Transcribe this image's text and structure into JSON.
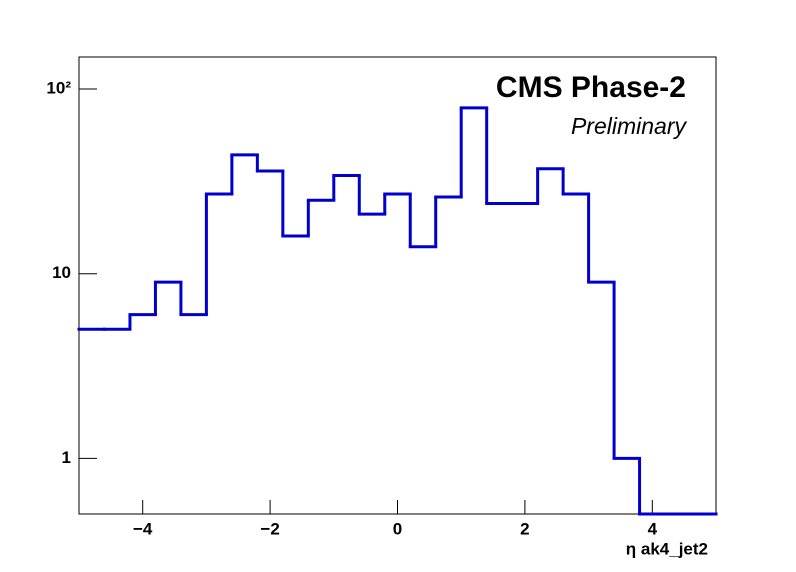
{
  "chart_data": {
    "type": "histogram",
    "title": "CMS Phase-2",
    "subtitle": "Preliminary",
    "x_label": "η ak4_jet2",
    "bins": [
      -5.0,
      -4.6,
      -4.2,
      -3.8,
      -3.4,
      -3.0,
      -2.6,
      -2.2,
      -1.8,
      -1.4,
      -1.0,
      -0.6,
      -0.2,
      0.2,
      0.6,
      1.0,
      1.4,
      1.8,
      2.2,
      2.6,
      3.0,
      3.4,
      3.8,
      4.2,
      4.6,
      5.0
    ],
    "counts": [
      5,
      5,
      6,
      9,
      6,
      27,
      44,
      36,
      16,
      25,
      34,
      21,
      27,
      14,
      26,
      79,
      24,
      24,
      37,
      27,
      9,
      1,
      0,
      0,
      0
    ],
    "color": "#0000cc",
    "xlim": [
      -5,
      5
    ],
    "xticks": [
      {
        "value": -4,
        "label": "−4"
      },
      {
        "value": -2,
        "label": "−2"
      },
      0,
      2,
      4
    ],
    "ylim": [
      0.5,
      149
    ],
    "yticks": [
      1,
      10,
      {
        "value": 100,
        "label": "10²"
      }
    ],
    "log_y": true
  }
}
